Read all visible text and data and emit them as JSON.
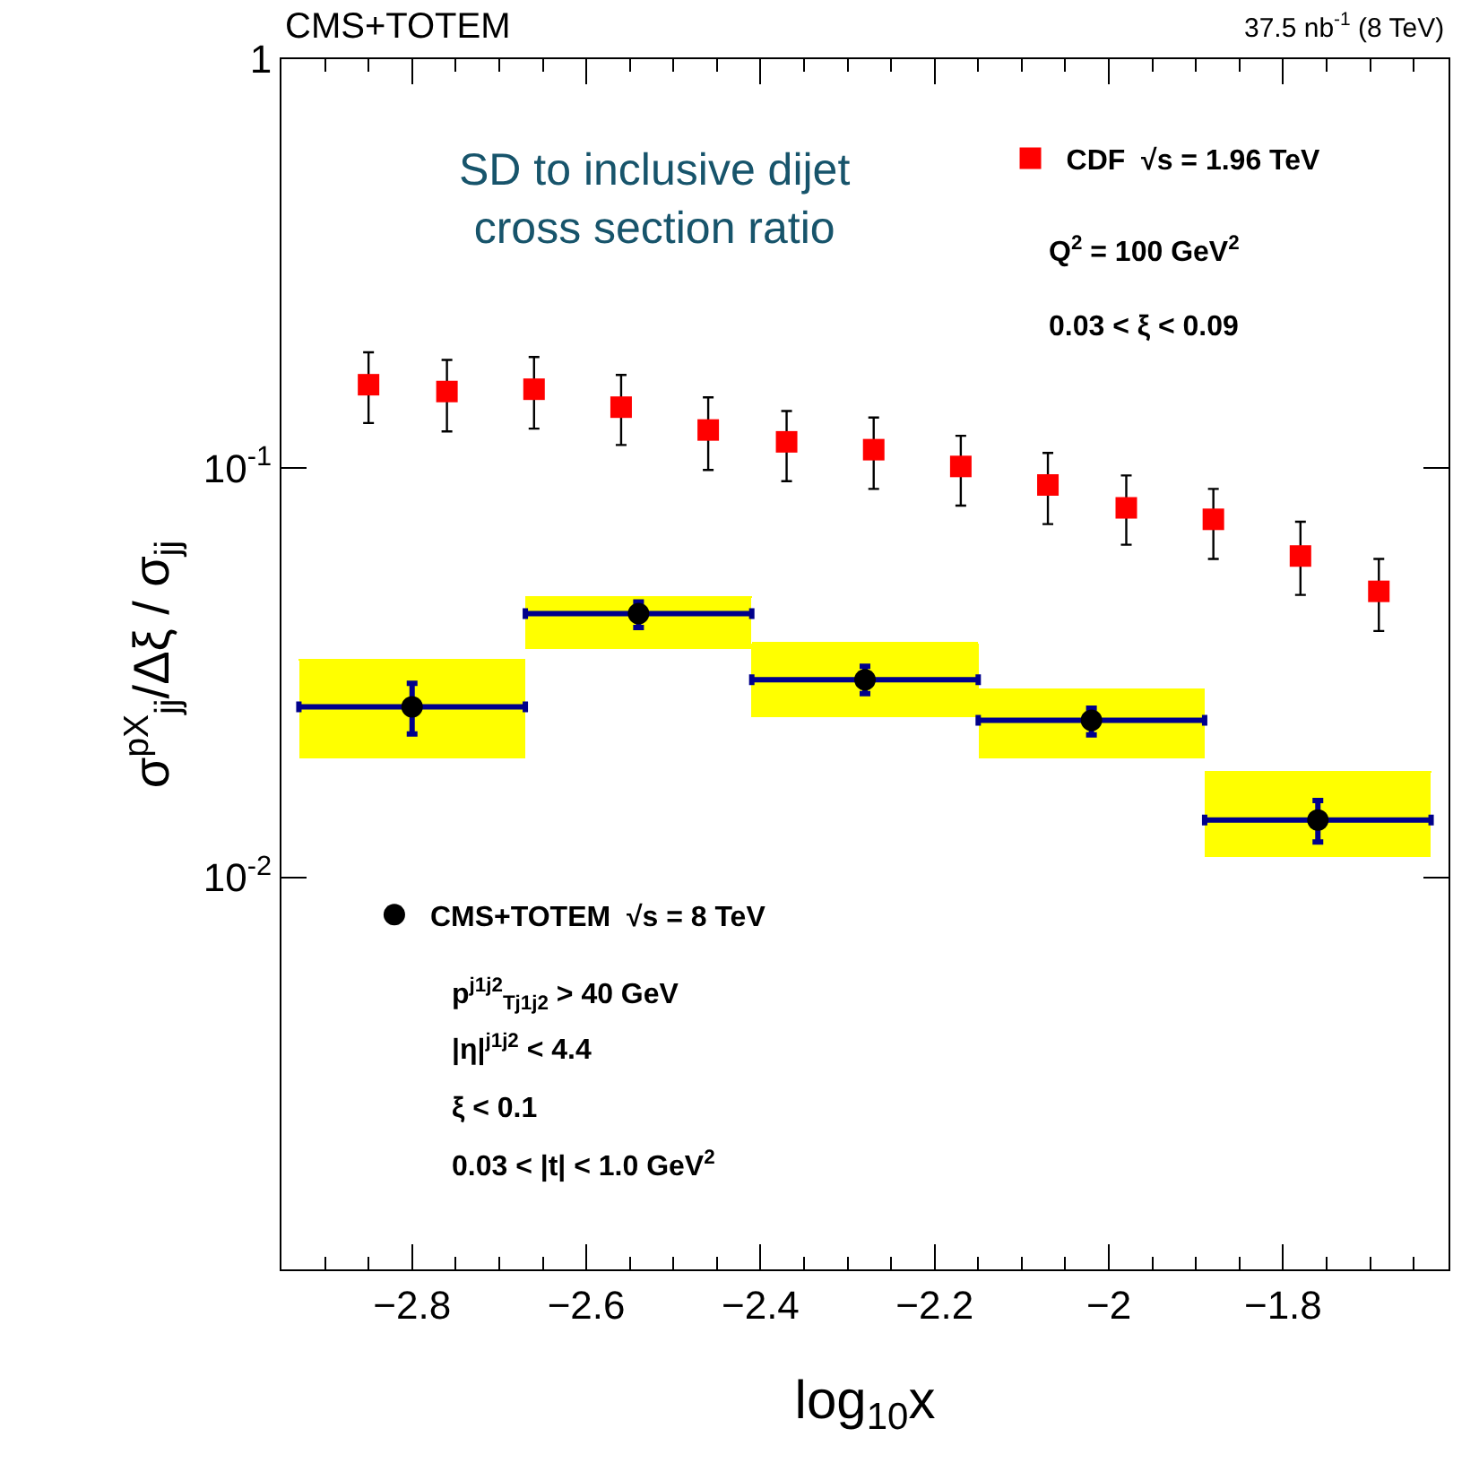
{
  "chart_data": {
    "type": "scatter",
    "xlabel": "log$_{10}$x",
    "ylabel": "σ$^{pX}$$_{jj}$/Δξ / σ$_{jj}$",
    "log": "y",
    "xlim": [
      -2.95,
      -1.61
    ],
    "xticks": [
      {
        "value": -2.8,
        "label": "−2.8"
      },
      {
        "value": -2.6,
        "label": "−2.6"
      },
      {
        "value": -2.4,
        "label": "−2.4"
      },
      {
        "value": -2.2,
        "label": "−2.2"
      },
      {
        "value": -2.0,
        "label": "−2"
      },
      {
        "value": -1.8,
        "label": "−1.8"
      }
    ],
    "ylim": [
      0.0011,
      1
    ],
    "yticks": [
      {
        "value": 0.01,
        "label": "10$^{-2}$"
      },
      {
        "value": 0.1,
        "label": "10$^{-1}$"
      },
      1
    ],
    "legend": [
      "top right",
      "bottom left"
    ],
    "series": [
      {
        "type": "bar",
        "color": "#ffff00",
        "x": [
          -2.8,
          -2.54,
          -2.28,
          -2.02,
          -1.76
        ],
        "base": [
          0.0196,
          0.036,
          0.0246,
          0.0196,
          0.0112
        ],
        "values": [
          0.0145,
          0.0125,
          0.0128,
          0.0092,
          0.0069
        ],
        "xerrors": [
          0.13,
          0.13,
          0.13,
          0.13,
          0.13
        ]
      },
      {
        "name": "CDF  √s = 1.96 TeV",
        "marker": "square",
        "color": "#ff0000",
        "x": [
          -2.85,
          -2.76,
          -2.66,
          -2.56,
          -2.46,
          -2.37,
          -2.27,
          -2.17,
          -2.07,
          -1.98,
          -1.88,
          -1.78,
          -1.69
        ],
        "values": [
          0.16,
          0.154,
          0.156,
          0.141,
          0.124,
          0.116,
          0.111,
          0.101,
          0.091,
          0.08,
          0.075,
          0.061,
          0.05
        ],
        "errors": [
          [
            0.129,
            0.192
          ],
          [
            0.123,
            0.184
          ],
          [
            0.125,
            0.187
          ],
          [
            0.114,
            0.169
          ],
          [
            0.099,
            0.149
          ],
          [
            0.093,
            0.138
          ],
          [
            0.089,
            0.133
          ],
          [
            0.081,
            0.12
          ],
          [
            0.073,
            0.109
          ],
          [
            0.065,
            0.096
          ],
          [
            0.06,
            0.089
          ],
          [
            0.049,
            0.074
          ],
          [
            0.04,
            0.06
          ]
        ]
      },
      {
        "name": "CMS+TOTEM  √s = 8 TeV",
        "marker": "circle",
        "color": "#000000",
        "x": [
          -2.8,
          -2.54,
          -2.28,
          -2.02,
          -1.76
        ],
        "values": [
          0.0261,
          0.0441,
          0.0304,
          0.0242,
          0.0138
        ],
        "errors": [
          [
            0.0224,
            0.0298
          ],
          [
            0.0408,
            0.0471
          ],
          [
            0.0281,
            0.0328
          ],
          [
            0.0223,
            0.0259
          ],
          [
            0.0122,
            0.0154
          ]
        ],
        "xerrors": [
          0.13,
          0.13,
          0.13,
          0.13,
          0.13
        ]
      }
    ],
    "annotations": [
      "CMS+TOTEM",
      "37.5 nb$^{-1}$ (8 TeV)",
      "SD to inclusive dijet\ncross section ratio",
      "Q$^{2}$ = 100 GeV$^{2}$",
      "0.03 < ξ < 0.09",
      "p$^{j1j2}$$_{Tj1j2}$ > 40 GeV",
      "|η|$^{j1j2}$ < 4.4",
      "ξ < 0.1",
      "0.03 < |t| < 1.0 GeV$^{2}$"
    ]
  }
}
